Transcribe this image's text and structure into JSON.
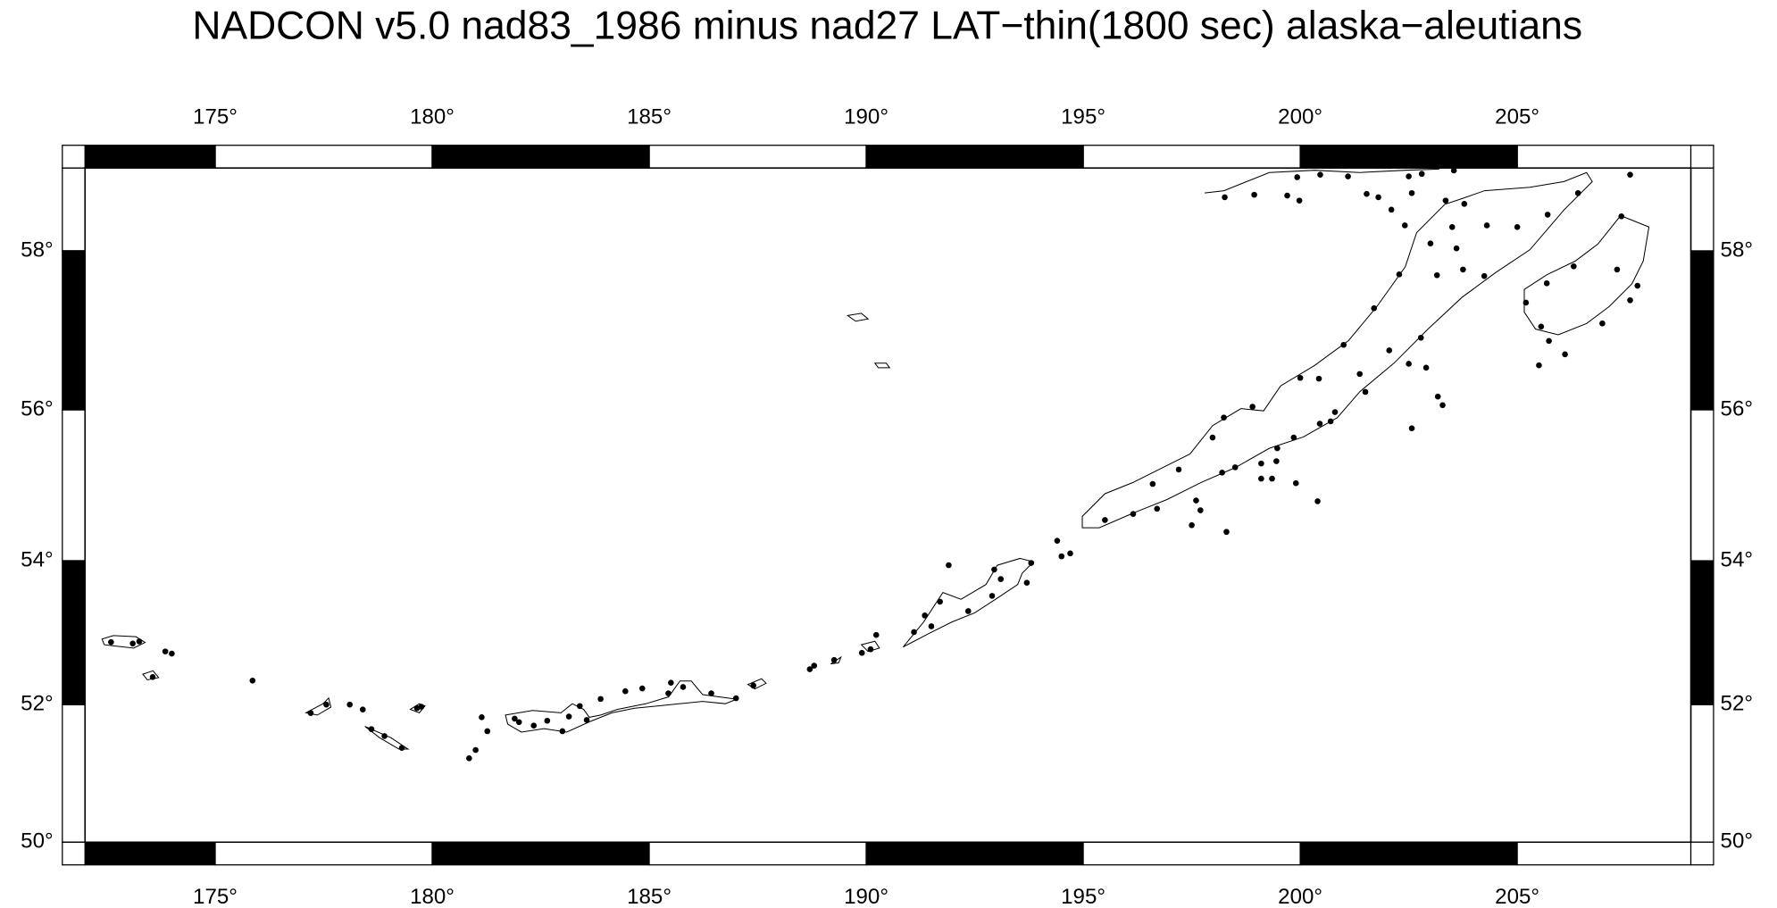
{
  "chart_data": {
    "type": "scatter",
    "title": "NADCON v5.0 nad83_1986 minus nad27 LAT−thin(1800 sec) alaska−aleutians",
    "projection": "mercator",
    "color": "#000000",
    "xlim": [
      172,
      209
    ],
    "ylim": [
      50,
      59
    ],
    "xticks": [
      {
        "value": 175,
        "label": "175°"
      },
      {
        "value": 180,
        "label": "180°"
      },
      {
        "value": 185,
        "label": "185°"
      },
      {
        "value": 190,
        "label": "190°"
      },
      {
        "value": 195,
        "label": "195°"
      },
      {
        "value": 200,
        "label": "200°"
      },
      {
        "value": 205,
        "label": "205°"
      }
    ],
    "yticks": [
      {
        "value": 50,
        "label": "50°"
      },
      {
        "value": 52,
        "label": "52°"
      },
      {
        "value": 54,
        "label": "54°"
      },
      {
        "value": 56,
        "label": "56°"
      },
      {
        "value": 58,
        "label": "58°"
      }
    ],
    "x": [
      172.6,
      173.1,
      173.25,
      173.85,
      174.0,
      173.56,
      175.86,
      177.2,
      177.56,
      178.1,
      178.4,
      178.6,
      178.9,
      179.3,
      179.65,
      179.75,
      180.85,
      181.0,
      181.14,
      181.27,
      181.9,
      182.0,
      182.34,
      182.65,
      183.0,
      183.15,
      183.4,
      183.56,
      183.88,
      184.45,
      184.84,
      185.5,
      185.78,
      185.44,
      186.43,
      187.0,
      187.4,
      188.7,
      188.8,
      189.26,
      189.9,
      190.1,
      190.23,
      191.1,
      191.35,
      191.7,
      191.9,
      191.5,
      192.35,
      192.9,
      193.1,
      193.7,
      192.95,
      193.8,
      194.4,
      194.5,
      194.7,
      195.5,
      196.15,
      196.7,
      197.5,
      197.6,
      197.7,
      198.3,
      198.2,
      198.5,
      199.1,
      199.1,
      199.35,
      199.45,
      199.9,
      200.4,
      199.47,
      199.85,
      200.45,
      200.8,
      201.5,
      200.7,
      202.5,
      202.9,
      203.17,
      203.28,
      202.57,
      200.43,
      201.0,
      201.7,
      202.28,
      202.41,
      203.0,
      203.6,
      203.15,
      203.75,
      203.5,
      203.78,
      204.3,
      205.0,
      205.7,
      206.4,
      207.6,
      204.24,
      205.2,
      205.55,
      205.5,
      206.1,
      206.96,
      207.3,
      207.77,
      207.6,
      207.4,
      206.3,
      205.68,
      205.73,
      198.26,
      198.94,
      199.7,
      199.98,
      199.93,
      200.46,
      201.1,
      201.53,
      201.8,
      202.5,
      202.8,
      203.54,
      203.35,
      202.57,
      202.1,
      202.78,
      202.05,
      201.37,
      200.0,
      198.9,
      198.24,
      197.2,
      196.6,
      197.98
    ],
    "values": [
      52.88,
      52.86,
      52.89,
      52.75,
      52.72,
      52.39,
      52.34,
      51.88,
      52.0,
      52.0,
      51.93,
      51.65,
      51.55,
      51.38,
      51.95,
      51.97,
      51.23,
      51.35,
      51.82,
      51.62,
      51.8,
      51.75,
      51.7,
      51.77,
      51.62,
      51.83,
      51.98,
      51.78,
      52.08,
      52.19,
      52.23,
      52.31,
      52.25,
      52.16,
      52.16,
      52.09,
      52.27,
      52.5,
      52.55,
      52.63,
      52.73,
      52.78,
      52.98,
      53.02,
      53.25,
      53.44,
      53.94,
      53.1,
      53.31,
      53.52,
      53.75,
      53.7,
      53.88,
      53.97,
      54.27,
      54.06,
      54.1,
      54.55,
      54.63,
      54.7,
      54.48,
      54.81,
      54.68,
      54.39,
      55.18,
      55.25,
      55.3,
      55.1,
      55.1,
      55.33,
      55.04,
      54.8,
      55.5,
      55.64,
      55.82,
      55.97,
      56.23,
      55.85,
      56.59,
      56.54,
      56.17,
      56.06,
      55.76,
      56.4,
      56.83,
      57.29,
      57.71,
      58.31,
      58.09,
      58.03,
      57.7,
      57.77,
      58.29,
      58.57,
      58.31,
      58.29,
      58.44,
      58.7,
      58.92,
      57.69,
      57.36,
      57.06,
      56.57,
      56.71,
      57.1,
      57.77,
      57.57,
      57.39,
      58.42,
      57.81,
      57.6,
      56.88,
      58.65,
      58.68,
      58.67,
      58.61,
      58.89,
      58.92,
      58.9,
      58.69,
      58.65,
      58.9,
      58.93,
      58.97,
      58.61,
      58.7,
      58.5,
      56.92,
      56.76,
      56.46,
      56.41,
      56.04,
      55.9,
      55.22,
      55.03,
      55.64
    ]
  }
}
